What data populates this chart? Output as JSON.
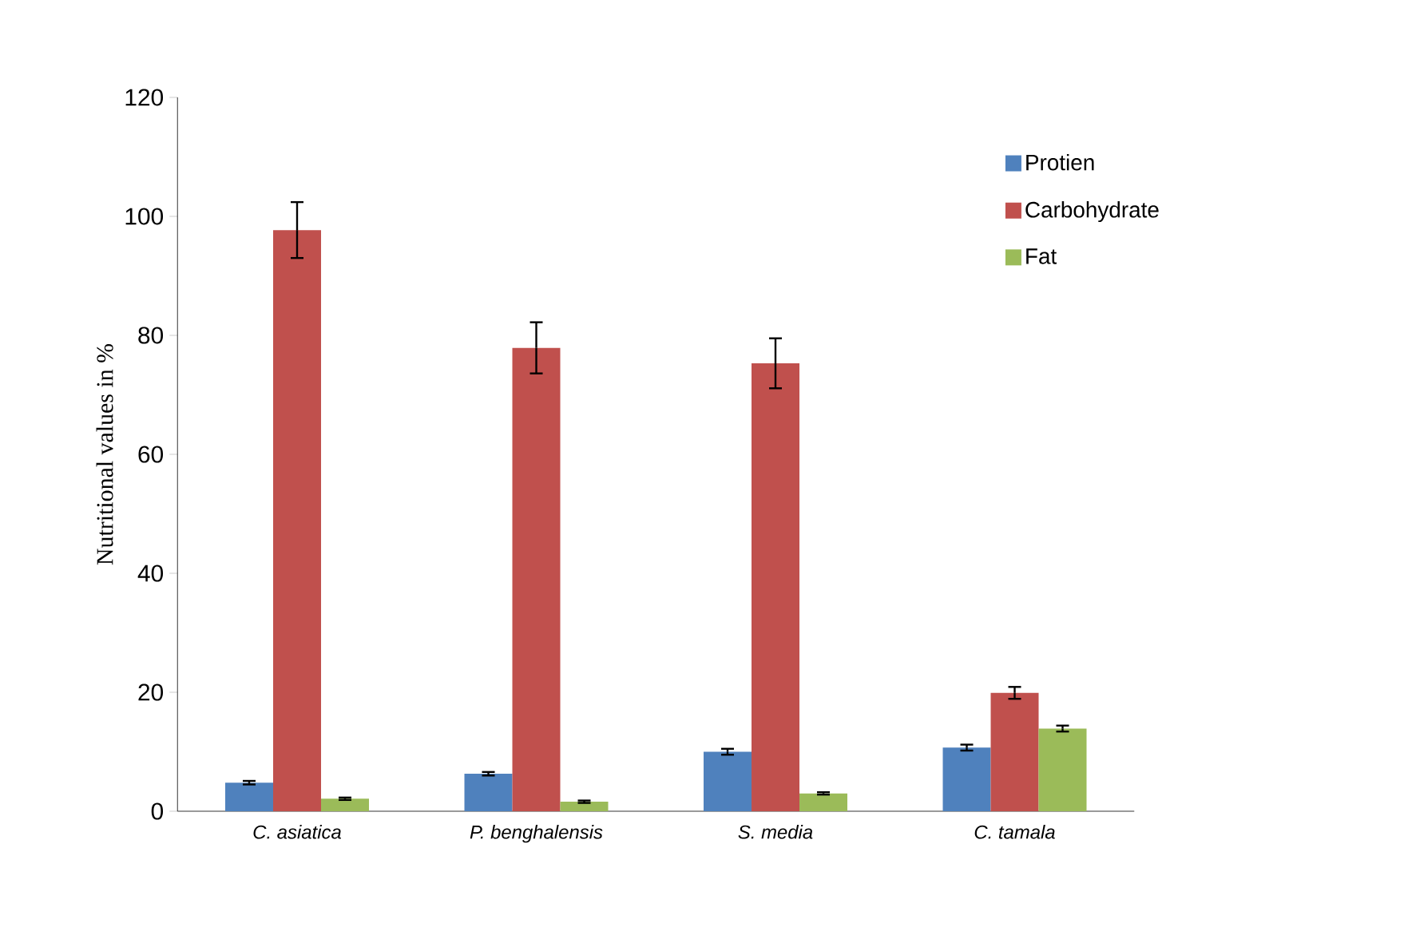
{
  "chart_data": {
    "type": "bar",
    "ylabel": "Nutritional  values in %",
    "categories": [
      "C. asiatica",
      "P. benghalensis",
      "S. media",
      "C. tamala"
    ],
    "series": [
      {
        "name": "Protien",
        "color": "#4f81bd",
        "values": [
          4.8,
          6.3,
          10.0,
          10.7
        ],
        "errors": [
          0.3,
          0.3,
          0.5,
          0.5
        ]
      },
      {
        "name": "Carbohydrate",
        "color": "#c0504d",
        "values": [
          97.7,
          77.9,
          75.3,
          19.9
        ],
        "errors": [
          4.7,
          4.3,
          4.2,
          1.0
        ]
      },
      {
        "name": "Fat",
        "color": "#9bbb59",
        "values": [
          2.1,
          1.6,
          3.0,
          13.9
        ],
        "errors": [
          0.2,
          0.2,
          0.2,
          0.5
        ]
      }
    ],
    "ylim": [
      0,
      120
    ],
    "yticks": [
      0,
      20,
      40,
      60,
      80,
      100,
      120
    ],
    "legend": "right"
  }
}
